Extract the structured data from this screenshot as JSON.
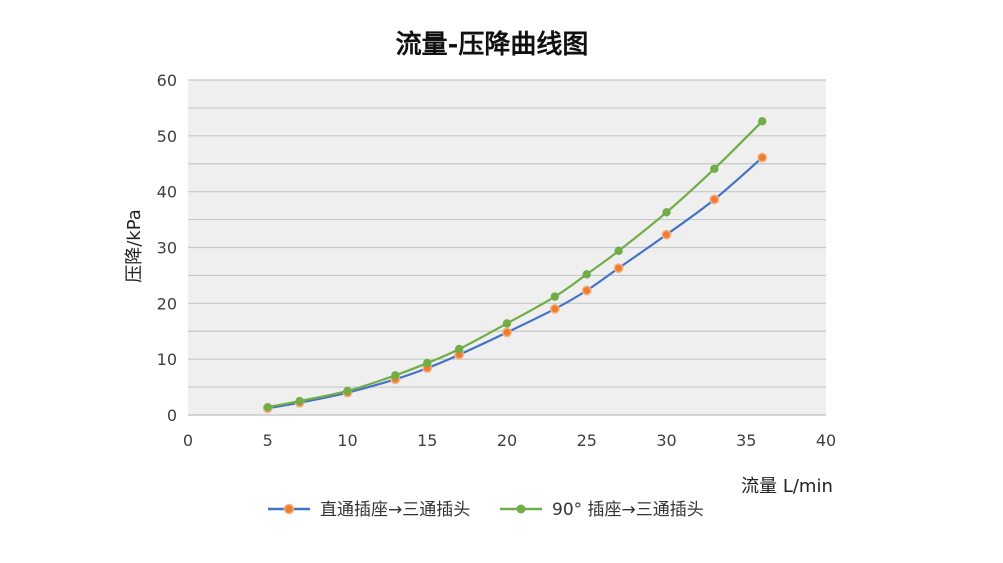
{
  "chart_data": {
    "type": "line",
    "title": "流量-压降曲线图",
    "xlabel": "流量  L/min",
    "ylabel": "压降/kPa",
    "xlim": [
      0,
      40
    ],
    "ylim": [
      0,
      60
    ],
    "xticks": [
      0,
      5,
      10,
      15,
      20,
      25,
      30,
      35,
      40
    ],
    "yticks": [
      0,
      10,
      20,
      30,
      40,
      50,
      60
    ],
    "y_minor_gridlines": [
      5,
      15,
      25,
      35,
      45,
      55
    ],
    "grid": true,
    "legend_position": "bottom",
    "series": [
      {
        "name": "直通插座→三通插头",
        "color": "#4472C4",
        "marker_color": "#ED7D31",
        "x": [
          5,
          7,
          10,
          13,
          15,
          17,
          20,
          23,
          25,
          27,
          30,
          33,
          36
        ],
        "y": [
          1.2,
          2.2,
          4.0,
          6.4,
          8.4,
          10.8,
          14.8,
          19.0,
          22.3,
          26.3,
          32.3,
          38.6,
          46.1
        ]
      },
      {
        "name": "90° 插座→三通插头",
        "color": "#70AD47",
        "marker_color": "#70AD47",
        "x": [
          5,
          7,
          10,
          13,
          15,
          17,
          20,
          23,
          25,
          27,
          30,
          33,
          36
        ],
        "y": [
          1.4,
          2.5,
          4.3,
          7.1,
          9.3,
          11.8,
          16.4,
          21.2,
          25.2,
          29.4,
          36.3,
          44.1,
          52.6
        ]
      }
    ]
  }
}
